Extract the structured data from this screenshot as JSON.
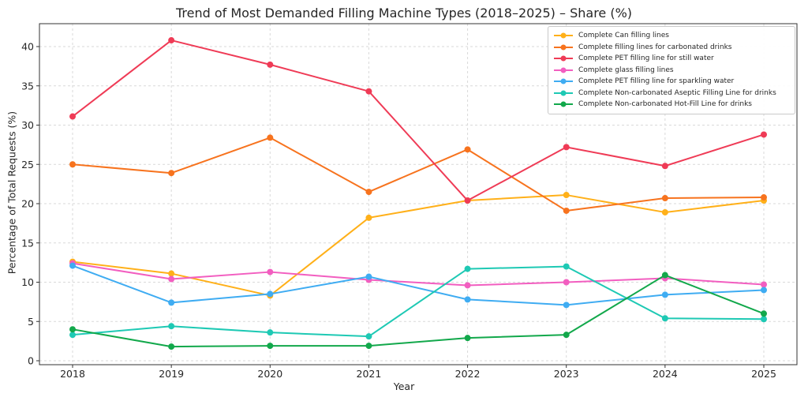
{
  "chart_data": {
    "type": "line",
    "title": "Trend of Most Demanded Filling Machine Types (2018–2025) – Share (%)",
    "xlabel": "Year",
    "ylabel": "Percentage of Total Requests (%)",
    "x": [
      2018,
      2019,
      2020,
      2021,
      2022,
      2023,
      2024,
      2025
    ],
    "yticks": [
      0,
      5,
      10,
      15,
      20,
      25,
      30,
      35,
      40
    ],
    "ylim": [
      -0.5,
      42.9
    ],
    "grid": true,
    "grid_style": "dashed",
    "legend_position": "upper right",
    "series": [
      {
        "id": "can-filling-lines",
        "name": "Complete Can filling lines",
        "color": "#FFB019",
        "values": [
          12.6,
          11.1,
          8.3,
          18.2,
          20.4,
          21.1,
          18.9,
          20.4
        ]
      },
      {
        "id": "carbonated-filling-lines",
        "name": "Complete filling lines for carbonated drinks",
        "color": "#F7731E",
        "values": [
          25.0,
          23.9,
          28.4,
          21.5,
          26.9,
          19.1,
          20.7,
          20.8
        ]
      },
      {
        "id": "pet-still-water",
        "name": "Complete PET filling line for still water",
        "color": "#EF3B56",
        "values": [
          31.1,
          40.8,
          37.7,
          34.3,
          20.4,
          27.2,
          24.8,
          28.8
        ]
      },
      {
        "id": "glass-filling-lines",
        "name": "Complete glass filling lines",
        "color": "#F25EC0",
        "values": [
          12.4,
          10.4,
          11.3,
          10.3,
          9.6,
          10.0,
          10.5,
          9.7
        ]
      },
      {
        "id": "pet-sparkling-water",
        "name": "Complete PET filling line for sparkling water",
        "color": "#3FACF2",
        "values": [
          12.1,
          7.4,
          8.5,
          10.7,
          7.8,
          7.1,
          8.4,
          9.0
        ]
      },
      {
        "id": "aseptic-filling-line",
        "name": "Complete Non-carbonated Aseptic Filling Line for drinks",
        "color": "#1EC9B4",
        "values": [
          3.3,
          4.4,
          3.6,
          3.1,
          11.7,
          12.0,
          5.4,
          5.3
        ]
      },
      {
        "id": "hot-fill-line",
        "name": "Complete Non-carbonated Hot-Fill Line for drinks",
        "color": "#12A84B",
        "values": [
          4.0,
          1.8,
          1.9,
          1.9,
          2.9,
          3.3,
          10.9,
          6.0
        ]
      }
    ]
  }
}
